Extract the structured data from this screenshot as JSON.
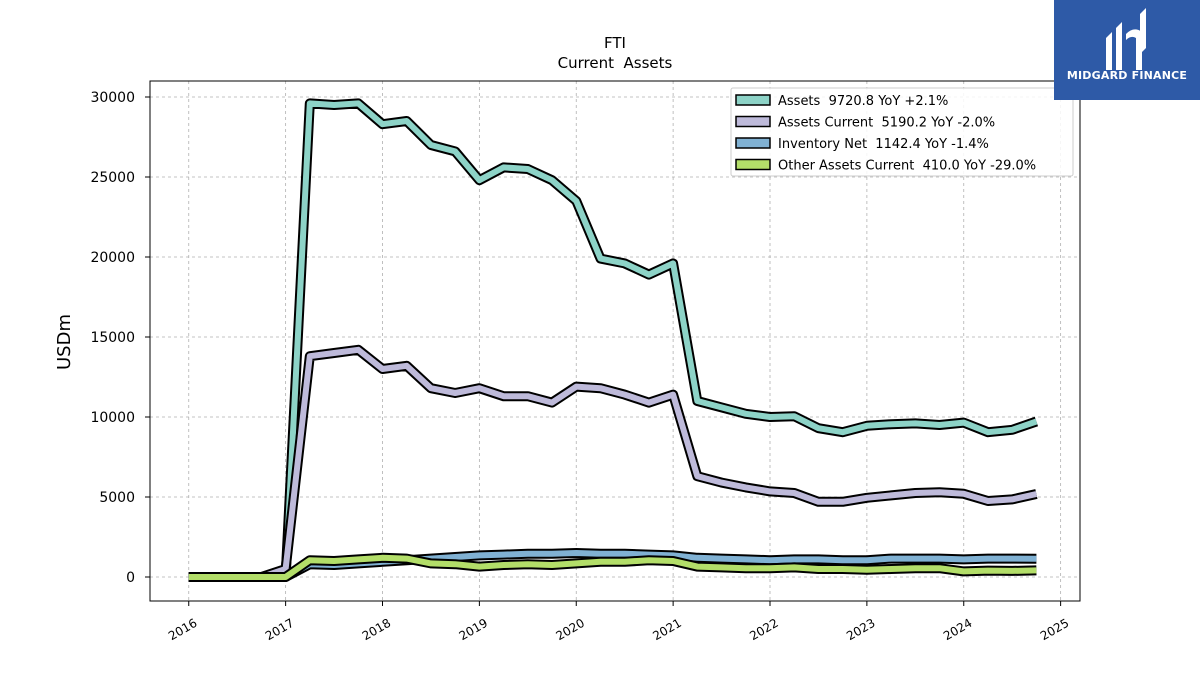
{
  "brand": {
    "name": "MIDGARD FINANCE",
    "bg_color": "#2e5aa7"
  },
  "chart_data": {
    "type": "line",
    "title": "FTI",
    "subtitle": "Current  Assets",
    "ylabel": "USDm",
    "xlabel": "",
    "xlim": [
      2015.6,
      2025.2
    ],
    "ylim": [
      -1500,
      31000
    ],
    "xticks": [
      "2016",
      "2017",
      "2018",
      "2019",
      "2020",
      "2021",
      "2022",
      "2023",
      "2024",
      "2025"
    ],
    "yticks": [
      "0",
      "5000",
      "10000",
      "15000",
      "20000",
      "25000",
      "30000"
    ],
    "grid": true,
    "legend_position": "top-right",
    "x": [
      2016.0,
      2016.25,
      2016.5,
      2016.75,
      2017.0,
      2017.25,
      2017.5,
      2017.75,
      2018.0,
      2018.25,
      2018.5,
      2018.75,
      2019.0,
      2019.25,
      2019.5,
      2019.75,
      2020.0,
      2020.25,
      2020.5,
      2020.75,
      2021.0,
      2021.25,
      2021.5,
      2021.75,
      2022.0,
      2022.25,
      2022.5,
      2022.75,
      2023.0,
      2023.25,
      2023.5,
      2023.75,
      2024.0,
      2024.25,
      2024.5,
      2024.75
    ],
    "series": [
      {
        "name": "Assets  9720.8 YoY +2.1%",
        "color": "#8dd3c7",
        "values": [
          0,
          0,
          0,
          0,
          0,
          29600,
          29500,
          29600,
          28300,
          28500,
          27000,
          26600,
          24800,
          25600,
          25500,
          24800,
          23500,
          19900,
          19600,
          18900,
          19600,
          11000,
          10600,
          10200,
          10000,
          10050,
          9300,
          9050,
          9450,
          9550,
          9600,
          9500,
          9650,
          9050,
          9200,
          9720.8
        ]
      },
      {
        "name": "Assets Current  5190.2 YoY -2.0%",
        "color": "#bebada",
        "values": [
          0,
          0,
          0,
          0,
          500,
          13800,
          14000,
          14200,
          13000,
          13200,
          11800,
          11500,
          11800,
          11300,
          11300,
          10900,
          11900,
          11800,
          11400,
          10900,
          11400,
          6300,
          5900,
          5600,
          5350,
          5250,
          4700,
          4700,
          4950,
          5100,
          5250,
          5300,
          5200,
          4750,
          4850,
          5190.2
        ]
      },
      {
        "name": "Inventory Net  1142.4 YoY -1.4%",
        "color": "#80b1d3",
        "values": [
          0,
          0,
          0,
          0,
          0,
          800,
          750,
          850,
          950,
          1050,
          1150,
          1250,
          1350,
          1400,
          1450,
          1450,
          1500,
          1450,
          1450,
          1400,
          1350,
          1200,
          1150,
          1100,
          1050,
          1100,
          1100,
          1050,
          1050,
          1150,
          1150,
          1150,
          1100,
          1150,
          1150,
          1142.4
        ]
      },
      {
        "name": "Other Assets Current  410.0 YoY -29.0%",
        "color": "#b3de69",
        "values": [
          0,
          0,
          0,
          0,
          0,
          1050,
          1000,
          1100,
          1200,
          1150,
          850,
          800,
          650,
          750,
          800,
          750,
          850,
          950,
          950,
          1050,
          1000,
          650,
          600,
          550,
          550,
          600,
          500,
          500,
          450,
          500,
          550,
          550,
          350,
          400,
          380,
          410.0
        ]
      }
    ]
  }
}
